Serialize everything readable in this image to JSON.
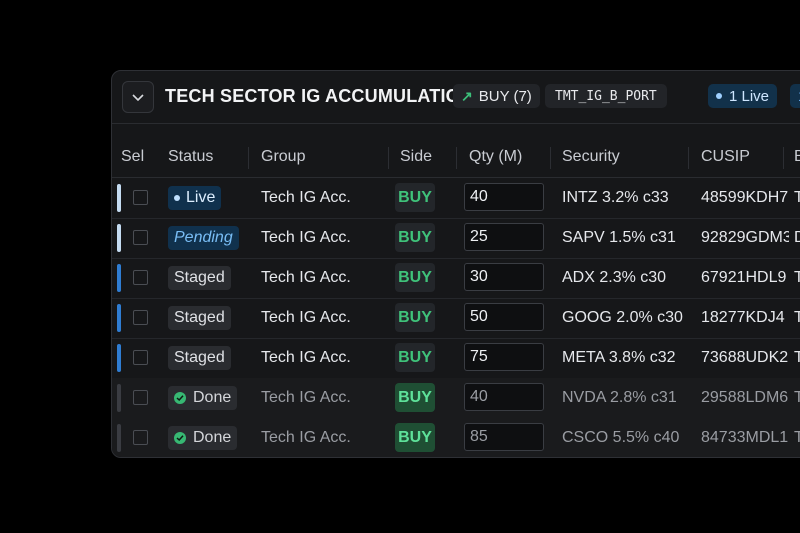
{
  "header": {
    "title": "TECH SECTOR IG ACCUMULATION",
    "buy_label": "BUY (7)",
    "portfolio": "TMT_IG_B_PORT",
    "live_label": "1 Live",
    "live_label2": "1"
  },
  "columns": [
    "Sel",
    "Status",
    "Group",
    "Side",
    "Qty (M)",
    "Security",
    "CUSIP",
    "B"
  ],
  "colors": {
    "live_bar": "#c5dcf2",
    "staged_bar": "#2f7dd3",
    "done_bar": "#3a3c42",
    "buy_green": "#3fc27a"
  },
  "rows": [
    {
      "status": "Live",
      "group": "Tech IG Acc.",
      "side": "BUY",
      "qty": "40",
      "security": "INTZ 3.2% c33",
      "cusip": "48599KDH7",
      "last": "T"
    },
    {
      "status": "Pending",
      "group": "Tech IG Acc.",
      "side": "BUY",
      "qty": "25",
      "security": "SAPV 1.5% c31",
      "cusip": "92829GDM3",
      "last": "D"
    },
    {
      "status": "Staged",
      "group": "Tech IG Acc.",
      "side": "BUY",
      "qty": "30",
      "security": "ADX 2.3% c30",
      "cusip": "67921HDL9",
      "last": "T"
    },
    {
      "status": "Staged",
      "group": "Tech IG Acc.",
      "side": "BUY",
      "qty": "50",
      "security": "GOOG 2.0% c30",
      "cusip": "18277KDJ4",
      "last": "T"
    },
    {
      "status": "Staged",
      "group": "Tech IG Acc.",
      "side": "BUY",
      "qty": "75",
      "security": "META 3.8% c32",
      "cusip": "73688UDK2",
      "last": "T"
    },
    {
      "status": "Done",
      "group": "Tech IG Acc.",
      "side": "BUY",
      "qty": "40",
      "security": "NVDA 2.8% c31",
      "cusip": "29588LDM6",
      "last": "T"
    },
    {
      "status": "Done",
      "group": "Tech IG Acc.",
      "side": "BUY",
      "qty": "85",
      "security": "CSCO 5.5% c40",
      "cusip": "84733MDL1",
      "last": "T"
    }
  ]
}
